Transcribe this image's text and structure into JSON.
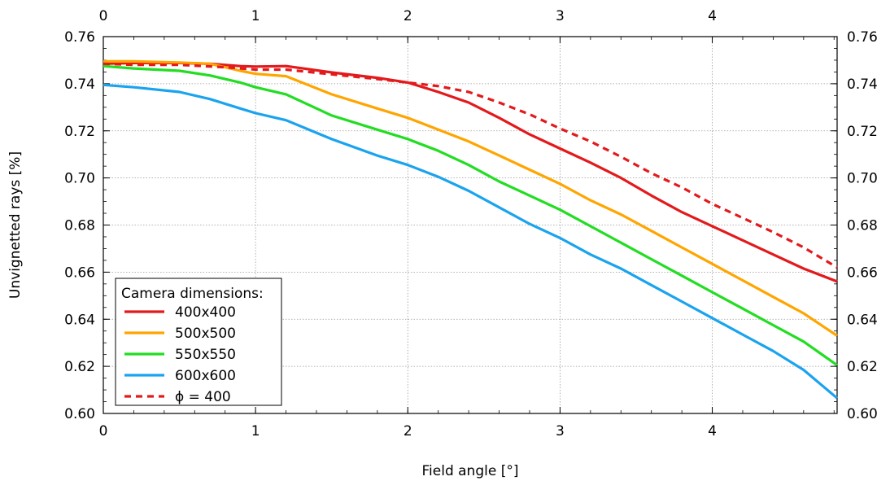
{
  "chart_data": {
    "type": "line",
    "xlabel": "Field angle [°]",
    "ylabel": "Unvignetted rays [%]",
    "xlim": [
      0,
      4.82
    ],
    "ylim": [
      0.6,
      0.76
    ],
    "x_ticks": [
      0,
      1,
      2,
      3,
      4
    ],
    "x_tick_labels": [
      "0",
      "1",
      "2",
      "3",
      "4"
    ],
    "y_ticks": [
      0.6,
      0.62,
      0.64,
      0.66,
      0.68,
      0.7,
      0.72,
      0.74,
      0.76
    ],
    "y_tick_labels": [
      "0.60",
      "0.62",
      "0.64",
      "0.66",
      "0.68",
      "0.70",
      "0.72",
      "0.74",
      "0.76"
    ],
    "top_axis_mirrors_bottom": true,
    "right_axis_mirrors_left": true,
    "grid": true,
    "legend": {
      "title": "Camera dimensions:",
      "position": "bottom-left"
    },
    "series": [
      {
        "name": "400x400",
        "color": "#e31a1c",
        "dash": "solid",
        "x": [
          0,
          0.2,
          0.5,
          0.7,
          0.9,
          1.0,
          1.2,
          1.5,
          1.8,
          2.0,
          2.2,
          2.4,
          2.6,
          2.8,
          3.0,
          3.2,
          3.4,
          3.6,
          3.8,
          4.0,
          4.2,
          4.4,
          4.6,
          4.82
        ],
        "y": [
          0.7485,
          0.7488,
          0.7488,
          0.7485,
          0.7475,
          0.7473,
          0.7475,
          0.7448,
          0.7425,
          0.7405,
          0.7365,
          0.732,
          0.7255,
          0.7185,
          0.7125,
          0.7065,
          0.7,
          0.6925,
          0.6855,
          0.6795,
          0.6735,
          0.6675,
          0.6615,
          0.656
        ]
      },
      {
        "name": "500x500",
        "color": "#ffa500",
        "dash": "solid",
        "x": [
          0,
          0.2,
          0.5,
          0.7,
          0.9,
          1.0,
          1.2,
          1.5,
          1.8,
          2.0,
          2.2,
          2.4,
          2.6,
          2.8,
          3.0,
          3.2,
          3.4,
          3.6,
          3.8,
          4.0,
          4.2,
          4.4,
          4.6,
          4.82
        ],
        "y": [
          0.7495,
          0.7495,
          0.749,
          0.7485,
          0.7455,
          0.7442,
          0.7432,
          0.7355,
          0.7295,
          0.7255,
          0.7205,
          0.7155,
          0.7095,
          0.7035,
          0.6975,
          0.6905,
          0.6845,
          0.6775,
          0.6705,
          0.6635,
          0.6565,
          0.6495,
          0.6425,
          0.633
        ]
      },
      {
        "name": "550x550",
        "color": "#22dd22",
        "dash": "solid",
        "x": [
          0,
          0.2,
          0.5,
          0.7,
          0.9,
          1.0,
          1.2,
          1.5,
          1.8,
          2.0,
          2.2,
          2.4,
          2.6,
          2.8,
          3.0,
          3.2,
          3.4,
          3.6,
          3.8,
          4.0,
          4.2,
          4.4,
          4.6,
          4.82
        ],
        "y": [
          0.7475,
          0.7465,
          0.7455,
          0.7435,
          0.7405,
          0.7385,
          0.7355,
          0.7265,
          0.7205,
          0.7165,
          0.7115,
          0.7055,
          0.6985,
          0.6925,
          0.6865,
          0.6795,
          0.6725,
          0.6655,
          0.6585,
          0.6515,
          0.6445,
          0.6375,
          0.6305,
          0.6205
        ]
      },
      {
        "name": "600x600",
        "color": "#1aa3ee",
        "dash": "solid",
        "x": [
          0,
          0.2,
          0.5,
          0.7,
          0.9,
          1.0,
          1.2,
          1.5,
          1.8,
          2.0,
          2.2,
          2.4,
          2.6,
          2.8,
          3.0,
          3.2,
          3.4,
          3.6,
          3.8,
          4.0,
          4.2,
          4.4,
          4.6,
          4.82
        ],
        "y": [
          0.7395,
          0.7385,
          0.7365,
          0.7335,
          0.7295,
          0.7275,
          0.7245,
          0.7165,
          0.7095,
          0.7055,
          0.7005,
          0.6945,
          0.6875,
          0.6805,
          0.6745,
          0.6675,
          0.6615,
          0.6545,
          0.6475,
          0.6405,
          0.6335,
          0.6265,
          0.6185,
          0.6065
        ]
      },
      {
        "name": "ϕ = 400",
        "color": "#e31a1c",
        "dash": "dashed",
        "x": [
          0,
          0.2,
          0.5,
          0.8,
          1.0,
          1.2,
          1.5,
          1.8,
          2.0,
          2.2,
          2.4,
          2.6,
          2.8,
          3.0,
          3.2,
          3.4,
          3.6,
          3.8,
          4.0,
          4.2,
          4.4,
          4.6,
          4.82
        ],
        "y": [
          0.7485,
          0.748,
          0.748,
          0.747,
          0.746,
          0.746,
          0.744,
          0.742,
          0.7405,
          0.739,
          0.7365,
          0.732,
          0.727,
          0.721,
          0.7155,
          0.709,
          0.702,
          0.696,
          0.689,
          0.683,
          0.677,
          0.6705,
          0.662
        ]
      }
    ]
  }
}
